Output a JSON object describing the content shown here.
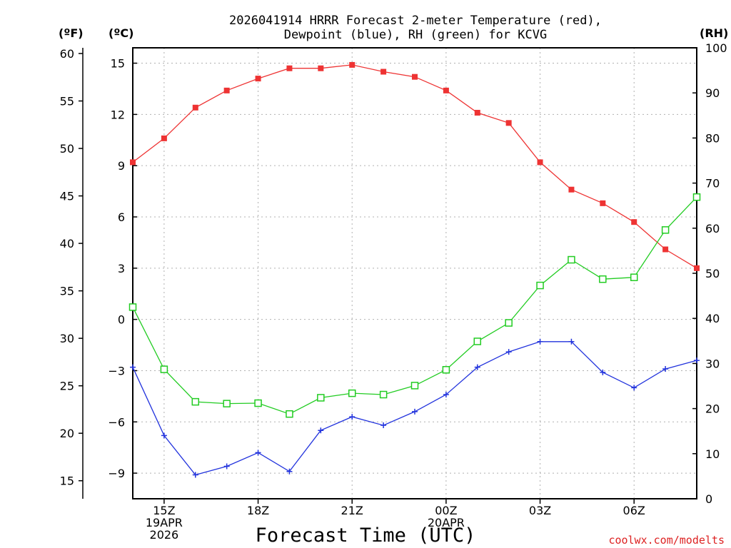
{
  "chart_data": {
    "type": "line",
    "title_lines": [
      "2026041914 HRRR Forecast 2-meter Temperature (red),",
      "Dewpoint (blue), RH (green) for KCVG"
    ],
    "xlabel": "Forecast Time (UTC)",
    "watermark": "coolwx.com/modelts",
    "axes": {
      "fahrenheit": {
        "unit_label": "(ºF)",
        "range": [
          13.1,
          60.6
        ],
        "ticks": [
          15,
          20,
          25,
          30,
          35,
          40,
          45,
          50,
          55,
          60
        ]
      },
      "celsius": {
        "unit_label": "(ºC)",
        "range": [
          -10.5,
          15.9
        ],
        "ticks": [
          -9,
          -6,
          -3,
          0,
          3,
          6,
          9,
          12,
          15
        ]
      },
      "rh": {
        "unit_label": "(RH)",
        "range": [
          0,
          100
        ],
        "ticks": [
          0,
          10,
          20,
          30,
          40,
          50,
          60,
          70,
          80,
          90,
          100
        ]
      }
    },
    "x_range": [
      14,
      32
    ],
    "x_ticks": [
      {
        "x": 15,
        "lines": [
          "15Z",
          "19APR",
          "2026"
        ]
      },
      {
        "x": 18,
        "lines": [
          "18Z"
        ]
      },
      {
        "x": 21,
        "lines": [
          "21Z"
        ]
      },
      {
        "x": 24,
        "lines": [
          "00Z",
          "20APR"
        ]
      },
      {
        "x": 27,
        "lines": [
          "03Z"
        ]
      },
      {
        "x": 30,
        "lines": [
          "06Z"
        ]
      }
    ],
    "x_hours": [
      14,
      15,
      16,
      17,
      18,
      19,
      20,
      21,
      22,
      23,
      24,
      25,
      26,
      27,
      28,
      29,
      30,
      31,
      32
    ],
    "series": [
      {
        "name": "Temperature",
        "axis": "celsius",
        "color": "#ee3333",
        "marker": "filled-square",
        "values": [
          9.2,
          10.6,
          12.4,
          13.4,
          14.1,
          14.7,
          14.7,
          14.9,
          14.5,
          14.2,
          13.4,
          12.1,
          11.5,
          9.2,
          7.6,
          6.8,
          5.7,
          4.1,
          3.0
        ]
      },
      {
        "name": "Dewpoint",
        "axis": "celsius",
        "color": "#2233dd",
        "marker": "plus",
        "values": [
          -2.8,
          -6.8,
          -9.1,
          -8.6,
          -7.8,
          -8.9,
          -6.5,
          -5.7,
          -6.2,
          -5.4,
          -4.4,
          -2.8,
          -1.9,
          -1.3,
          -1.3,
          -3.1,
          -4.0,
          -2.9,
          -2.4
        ]
      },
      {
        "name": "RH",
        "axis": "rh",
        "color": "#22cc22",
        "marker": "open-square",
        "values": [
          42.5,
          28.7,
          21.5,
          21.1,
          21.2,
          18.8,
          22.4,
          23.4,
          23.1,
          25.1,
          28.6,
          34.9,
          39.0,
          47.3,
          53.0,
          48.7,
          49.1,
          59.6,
          66.9
        ]
      }
    ]
  }
}
